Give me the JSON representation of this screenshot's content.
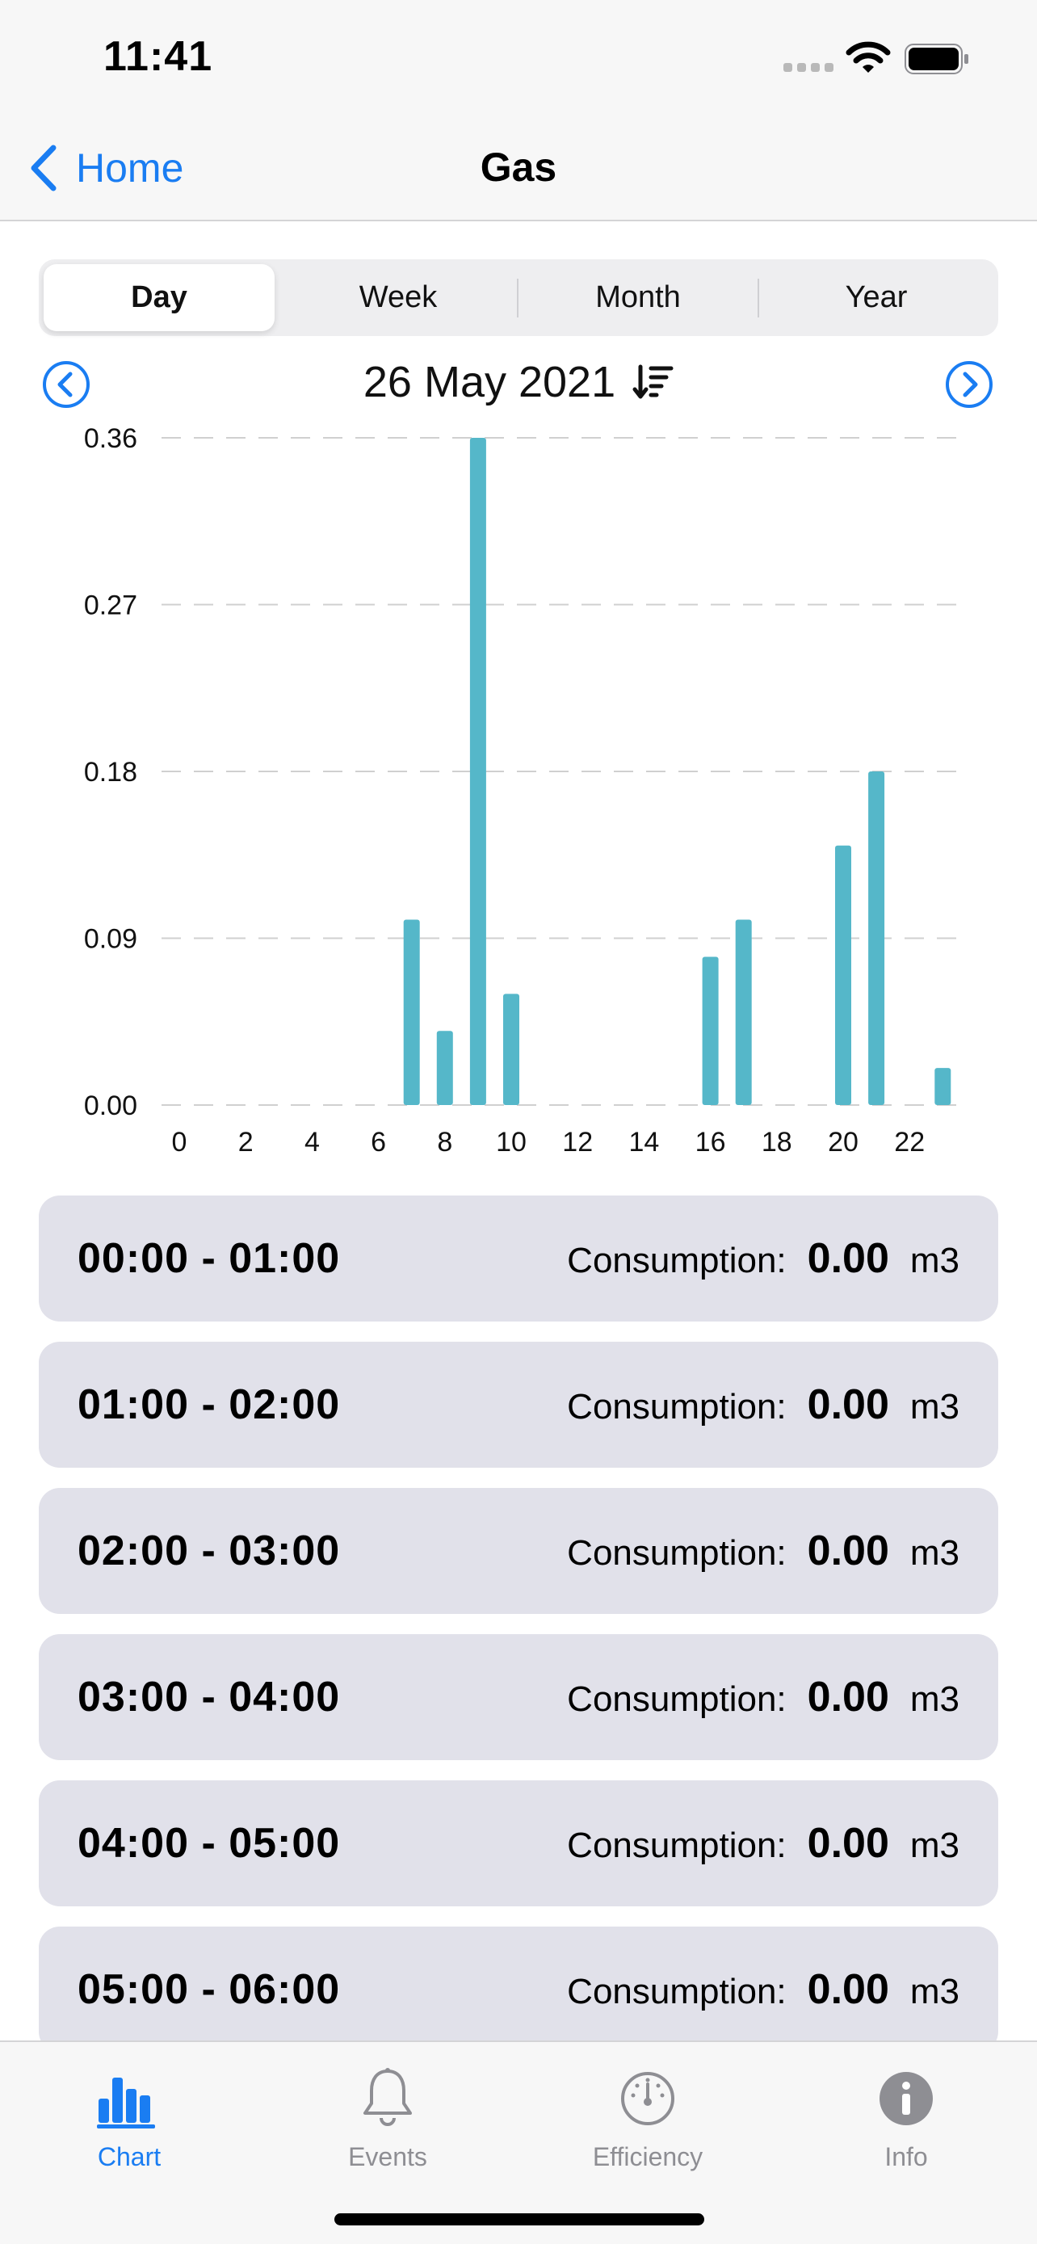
{
  "status_bar": {
    "time": "11:41"
  },
  "nav": {
    "back_label": "Home",
    "title": "Gas"
  },
  "segments": [
    {
      "label": "Day",
      "active": true
    },
    {
      "label": "Week",
      "active": false
    },
    {
      "label": "Month",
      "active": false
    },
    {
      "label": "Year",
      "active": false
    }
  ],
  "date_label": "26 May 2021",
  "chart_data": {
    "type": "bar",
    "x": [
      0,
      1,
      2,
      3,
      4,
      5,
      6,
      7,
      8,
      9,
      10,
      11,
      12,
      13,
      14,
      15,
      16,
      17,
      18,
      19,
      20,
      21,
      22,
      23
    ],
    "values": [
      0,
      0,
      0,
      0,
      0,
      0,
      0,
      0.1,
      0.04,
      0.36,
      0.06,
      0,
      0,
      0,
      0,
      0,
      0.08,
      0.1,
      0,
      0,
      0.14,
      0.18,
      0,
      0.02
    ],
    "x_tick_labels": [
      "0",
      "2",
      "4",
      "6",
      "8",
      "10",
      "12",
      "14",
      "16",
      "18",
      "20",
      "22"
    ],
    "y_tick_labels": [
      "0.00",
      "0.09",
      "0.18",
      "0.27",
      "0.36"
    ],
    "y_ticks": [
      0,
      0.09,
      0.18,
      0.27,
      0.36
    ],
    "ylim": [
      0,
      0.36
    ],
    "grid": "horizontal dashed",
    "bar_color": "#55b7c9"
  },
  "list": {
    "label": "Consumption:",
    "unit": "m3",
    "rows": [
      {
        "time": "00:00 - 01:00",
        "value": "0.00"
      },
      {
        "time": "01:00 - 02:00",
        "value": "0.00"
      },
      {
        "time": "02:00 - 03:00",
        "value": "0.00"
      },
      {
        "time": "03:00 - 04:00",
        "value": "0.00"
      },
      {
        "time": "04:00 - 05:00",
        "value": "0.00"
      },
      {
        "time": "05:00 - 06:00",
        "value": "0.00"
      }
    ]
  },
  "tabs": [
    {
      "label": "Chart",
      "icon": "chart-bars-icon",
      "active": true
    },
    {
      "label": "Events",
      "icon": "bell-icon",
      "active": false
    },
    {
      "label": "Efficiency",
      "icon": "gauge-icon",
      "active": false
    },
    {
      "label": "Info",
      "icon": "info-icon",
      "active": false
    }
  ],
  "colors": {
    "accent": "#1a7df2",
    "bar": "#55b7c9",
    "row_bg": "#e1e1ea",
    "inactive": "#8e8e93"
  }
}
